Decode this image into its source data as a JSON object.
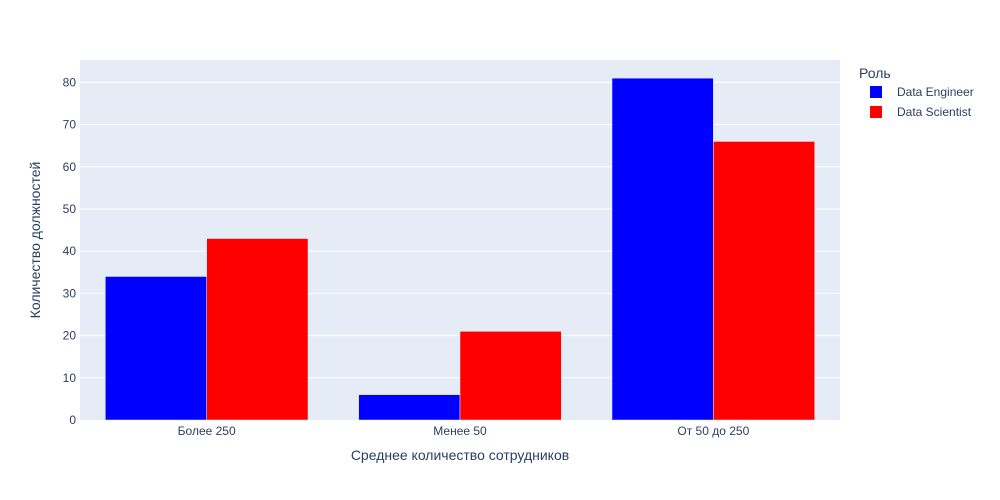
{
  "chart_data": {
    "type": "bar",
    "categories": [
      "Более 250",
      "Менее 50",
      "От 50 до 250"
    ],
    "series": [
      {
        "name": "Data Engineer",
        "values": [
          34,
          6,
          81
        ],
        "color": "#0000ff"
      },
      {
        "name": "Data Scientist",
        "values": [
          43,
          21,
          66
        ],
        "color": "#ff0000"
      }
    ],
    "xlabel": "Среднее количество сотрудников",
    "ylabel": "Количество должностей",
    "ylim": [
      0,
      85.3
    ],
    "yticks": [
      0,
      10,
      20,
      30,
      40,
      50,
      60,
      70,
      80
    ],
    "grid": true,
    "legend": {
      "title": "Роль",
      "position": "top-right"
    },
    "plot_bg": "#e5ecf6",
    "text_color": "#2a3f5f"
  }
}
